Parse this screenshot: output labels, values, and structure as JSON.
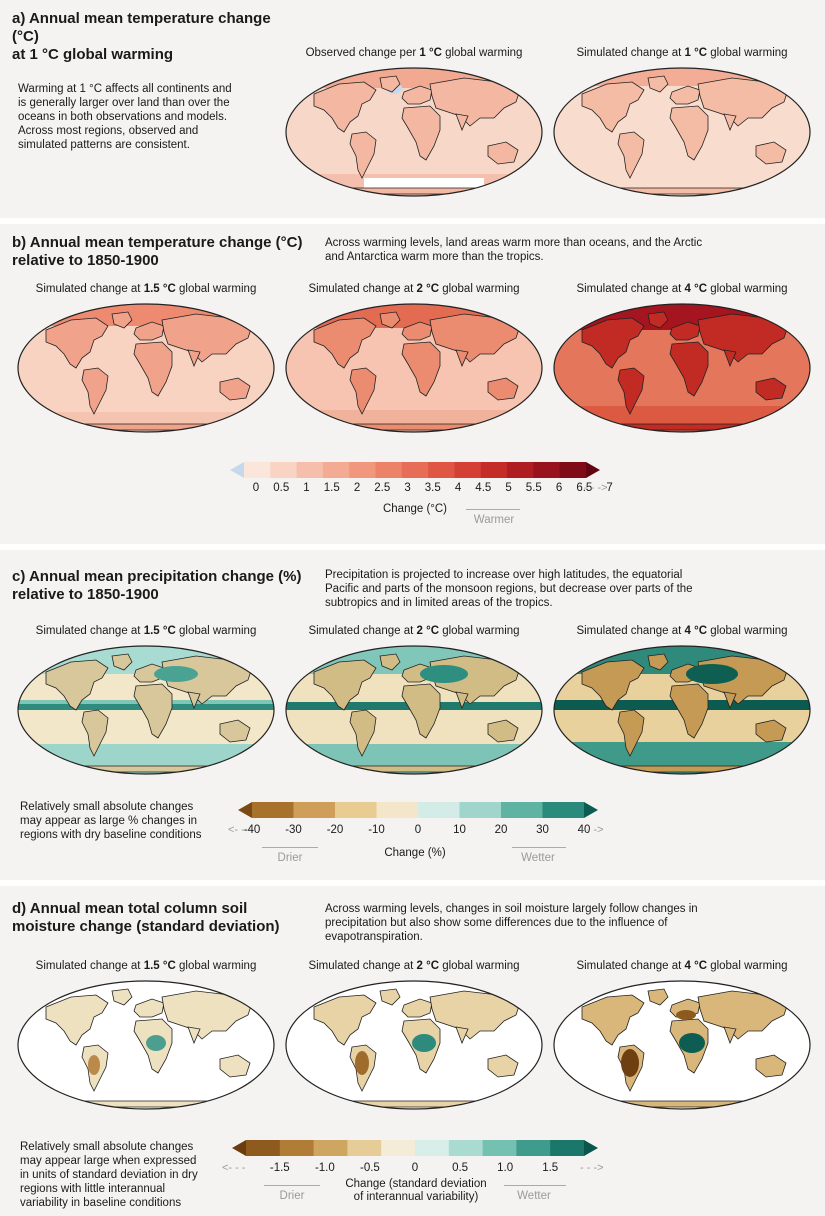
{
  "panel_a": {
    "title_line1": "a) Annual mean temperature change (°C)",
    "title_line2": "at 1 °C global warming",
    "desc": [
      "Warming at 1 °C affects all continents and",
      "is generally larger over land than over the",
      "oceans in both observations and models.",
      "Across most regions, observed and",
      "simulated patterns are consistent."
    ],
    "maps": [
      {
        "pre": "Observed change per ",
        "bold": "1 °C",
        "post": " global warming"
      },
      {
        "pre": "Simulated change at ",
        "bold": "1 °C",
        "post": " global warming"
      }
    ]
  },
  "panel_b": {
    "title_line1": "b) Annual mean temperature change (°C)",
    "title_line2": "relative to 1850-1900",
    "desc": [
      "Across warming levels, land areas warm more than oceans, and the Arctic",
      "and Antarctica warm more than the tropics."
    ],
    "maps": [
      {
        "pre": "Simulated change at ",
        "bold": "1.5 °C",
        "post": " global warming"
      },
      {
        "pre": "Simulated change at ",
        "bold": "2 °C",
        "post": " global warming"
      },
      {
        "pre": "Simulated change at ",
        "bold": "4 °C",
        "post": " global warming"
      }
    ],
    "colorbar": {
      "ticks": [
        "0",
        "0.5",
        "1",
        "1.5",
        "2",
        "2.5",
        "3",
        "3.5",
        "4",
        "4.5",
        "5",
        "5.5",
        "6",
        "6.5",
        "7"
      ],
      "colors": [
        "#c6d8ec",
        "#fbe6dc",
        "#f9d3c4",
        "#f6bfab",
        "#f3ab93",
        "#f0977d",
        "#ec8268",
        "#e66d56",
        "#df5744",
        "#d44034",
        "#c42c28",
        "#b01d21",
        "#98131b",
        "#7e0b16",
        "#620510"
      ],
      "label": "Change (°C)",
      "warmer": "Warmer",
      "more": "- - ->"
    }
  },
  "panel_c": {
    "title_line1": "c) Annual mean precipitation change (%)",
    "title_line2": "relative to 1850-1900",
    "desc": [
      "Precipitation is projected to increase over high latitudes, the equatorial",
      "Pacific and parts of the monsoon regions, but decrease over parts of the",
      "subtropics and in limited areas of the tropics."
    ],
    "maps": [
      {
        "pre": "Simulated change at ",
        "bold": "1.5 °C",
        "post": " global warming"
      },
      {
        "pre": "Simulated change at ",
        "bold": "2 °C",
        "post": " global warming"
      },
      {
        "pre": "Simulated change at ",
        "bold": "4 °C",
        "post": " global warming"
      }
    ],
    "note": [
      "Relatively small absolute changes",
      "may appear as large % changes in",
      "regions with dry baseline conditions"
    ],
    "colorbar": {
      "ticks": [
        "-40",
        "-30",
        "-20",
        "-10",
        "0",
        "10",
        "20",
        "30",
        "40"
      ],
      "colors": [
        "#7a4a12",
        "#a9722c",
        "#cf9f5a",
        "#e8cc92",
        "#f4e6c8",
        "#d3ece7",
        "#9fd5ca",
        "#5fb3a3",
        "#2a8a7b",
        "#0d5c51"
      ],
      "label": "Change (%)",
      "drier": "Drier",
      "wetter": "Wetter",
      "less": "<- - -",
      "more": "- - ->"
    }
  },
  "panel_d": {
    "title_line1": "d) Annual mean total column soil",
    "title_line2": "moisture change (standard deviation)",
    "desc": [
      "Across warming levels, changes in soil moisture largely follow changes in",
      "precipitation but also show some differences due to the influence of",
      "evapotranspiration."
    ],
    "maps": [
      {
        "pre": "Simulated change at ",
        "bold": "1.5 °C",
        "post": " global warming"
      },
      {
        "pre": "Simulated change at ",
        "bold": "2 °C",
        "post": " global warming"
      },
      {
        "pre": "Simulated change at ",
        "bold": "4 °C",
        "post": " global warming"
      }
    ],
    "note": [
      "Relatively small absolute changes",
      "may appear large when expressed",
      "in units of standard deviation in dry",
      "regions with little interannual",
      "variability in baseline conditions"
    ],
    "colorbar": {
      "ticks": [
        "-1.5",
        "-1.0",
        "-0.5",
        "0",
        "0.5",
        "1.0",
        "1.5"
      ],
      "colors": [
        "#6b3d0e",
        "#8e5a1d",
        "#b07c36",
        "#cfa562",
        "#e6cc96",
        "#f5ecd8",
        "#d7eee9",
        "#a9dbd1",
        "#74c0b1",
        "#3f9c8c",
        "#1b776a",
        "#0b564c"
      ],
      "label_line1": "Change (standard deviation",
      "label_line2": "of interannual variability)",
      "drier": "Drier",
      "wetter": "Wetter",
      "less": "<- - -",
      "more": "- - ->"
    }
  }
}
